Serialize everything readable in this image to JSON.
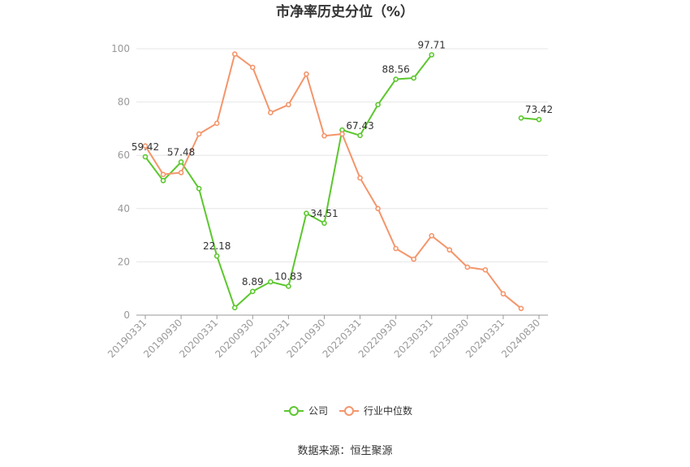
{
  "chart_data": {
    "type": "line",
    "title": "市净率历史分位（%）",
    "source": "数据来源：恒生聚源",
    "ylim": [
      0,
      100
    ],
    "yticks": [
      0,
      20,
      40,
      60,
      80,
      100
    ],
    "grid": true,
    "legend_position": "bottom",
    "x": [
      "20190331",
      "20190630",
      "20190930",
      "20191231",
      "20200331",
      "20200630",
      "20200930",
      "20201231",
      "20210331",
      "20210630",
      "20210930",
      "20211231",
      "20220331",
      "20220630",
      "20220930",
      "20221231",
      "20230331",
      "20230630",
      "20230930",
      "20231231",
      "20240331",
      "20240630",
      "20240830"
    ],
    "xtick_labels": [
      "20190331",
      "20190930",
      "20200331",
      "20200930",
      "20210331",
      "20210930",
      "20220331",
      "20220930",
      "20230331",
      "20230930",
      "20240331",
      "20240830"
    ],
    "series": [
      {
        "name": "公司",
        "color": "#5cc72e",
        "values": [
          59.42,
          50.5,
          57.48,
          47.5,
          22.18,
          2.8,
          8.89,
          12.5,
          10.83,
          38.2,
          34.51,
          69.5,
          67.43,
          79.0,
          88.56,
          89.0,
          97.71,
          null,
          null,
          null,
          null,
          74.0,
          73.42
        ],
        "labels": {
          "0": "59.42",
          "2": "57.48",
          "4": "22.18",
          "6": "8.89",
          "8": "10.83",
          "10": "34.51",
          "12": "67.43",
          "14": "88.56",
          "16": "97.71",
          "22": "73.42"
        }
      },
      {
        "name": "行业中位数",
        "color": "#f4956b",
        "values": [
          63.5,
          52.8,
          53.5,
          68.0,
          72.0,
          98.0,
          93.0,
          76.0,
          79.0,
          90.5,
          67.3,
          68.0,
          51.5,
          40.0,
          25.0,
          21.0,
          29.8,
          24.5,
          18.0,
          17.0,
          8.0,
          2.5,
          null
        ],
        "labels": {}
      }
    ]
  }
}
